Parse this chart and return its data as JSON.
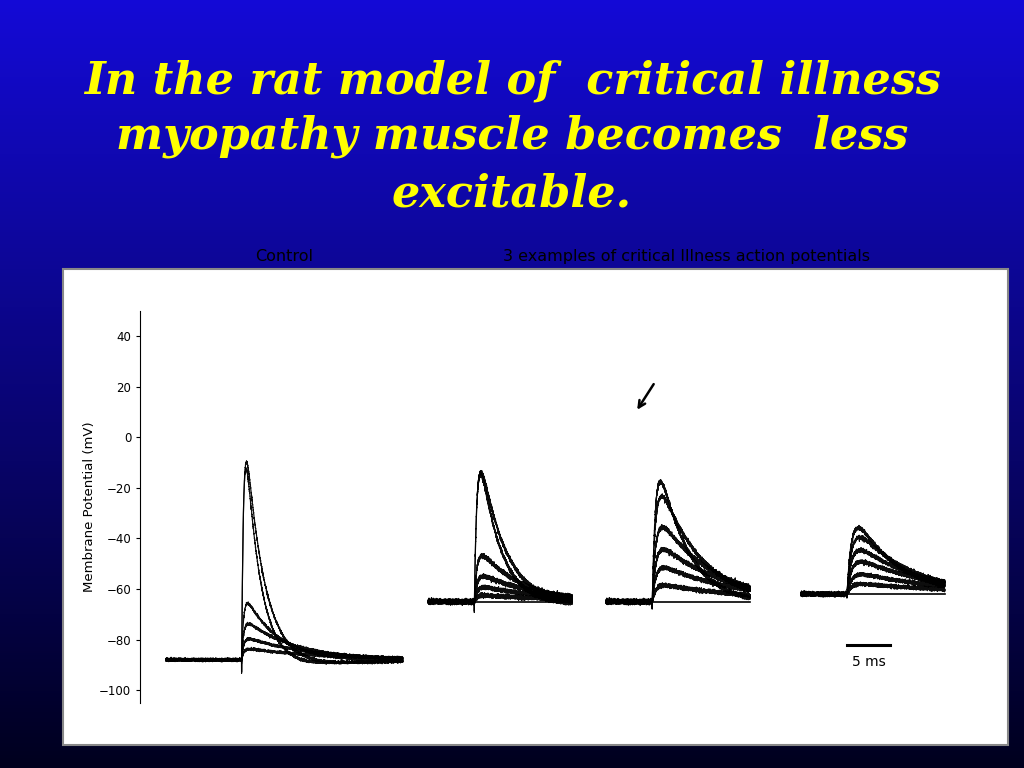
{
  "title_line1": "In the rat model of  critical illness",
  "title_line2": "myopathy muscle becomes  less",
  "title_line3": "excitable.",
  "title_color": "#FFFF00",
  "title_fontsize": 32,
  "title_fontstyle": "italic",
  "title_fontweight": "bold",
  "control_label": "Control",
  "ci_label": "3 examples of critical Illness action potentials",
  "ylabel": "Membrane Potential (mV)",
  "yticks": [
    40,
    20,
    0,
    -20,
    -40,
    -60,
    -80,
    -100
  ],
  "scalebar_label": "5 ms"
}
